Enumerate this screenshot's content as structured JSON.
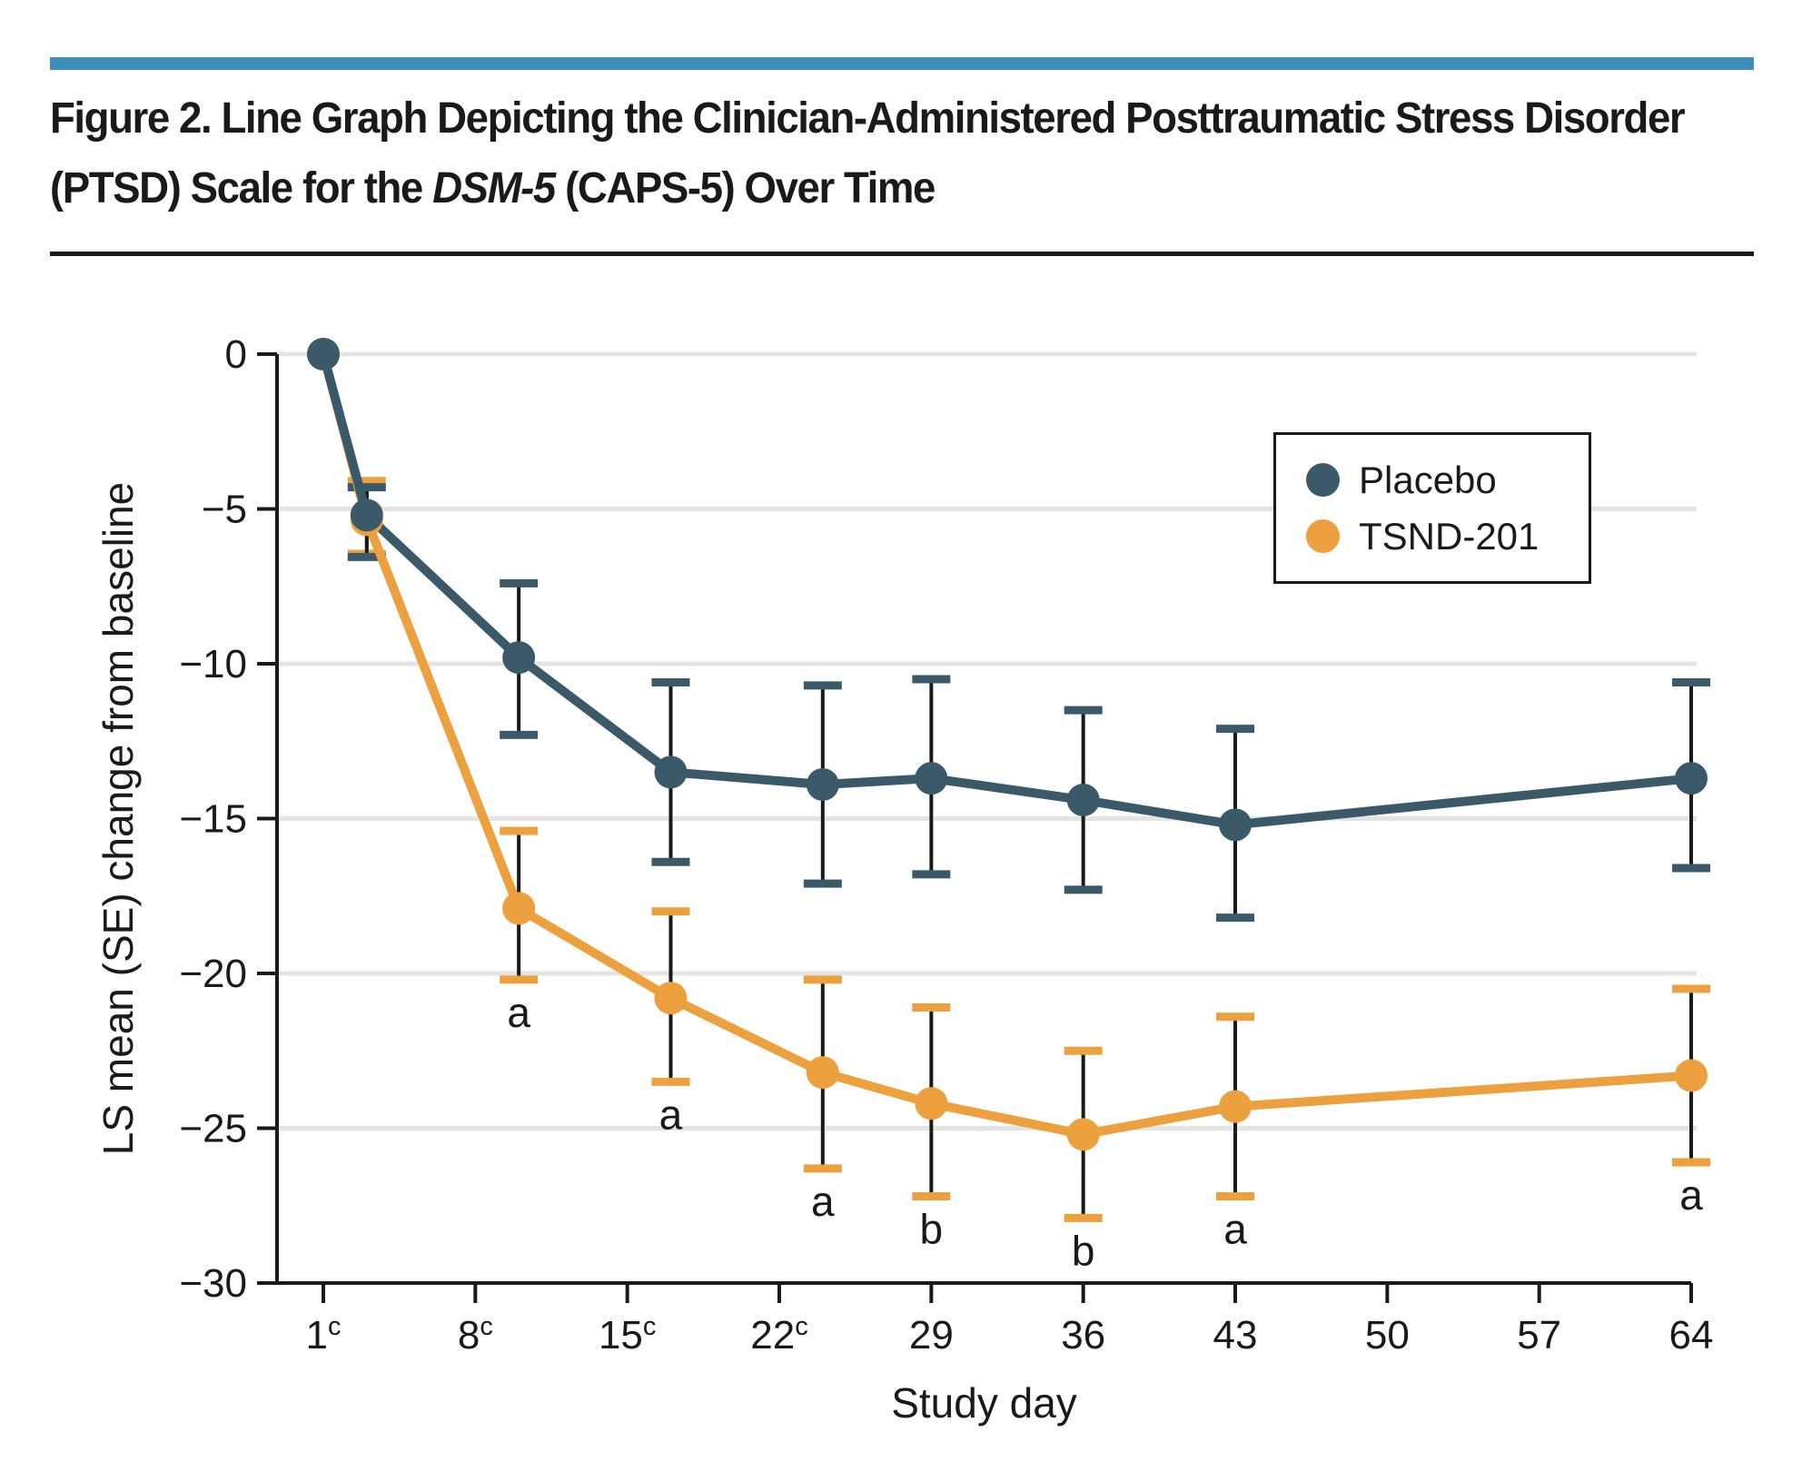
{
  "title": {
    "prefix": "Figure 2. Line Graph Depicting the Clinician-Administered Posttraumatic Stress Disorder (PTSD) Scale for the ",
    "italic": "DSM-5",
    "suffix": " (CAPS-5) Over Time"
  },
  "colors": {
    "header_bar": "#3D8EBB",
    "title_rule": "#1a1a1a",
    "placebo": "#3B5A69",
    "tsnd": "#EDA03E",
    "grid": "#E4E4E4",
    "axis": "#1a1a1a",
    "text": "#1a1a1a"
  },
  "legend": {
    "items": [
      {
        "label": "Placebo",
        "color_key": "placebo"
      },
      {
        "label": "TSND-201",
        "color_key": "tsnd"
      }
    ]
  },
  "chart_data": {
    "type": "line",
    "title": "Figure 2. Line Graph Depicting the Clinician-Administered Posttraumatic Stress Disorder (PTSD) Scale for the DSM-5 (CAPS-5) Over Time",
    "xlabel": "Study day",
    "ylabel": "LS mean (SE) change from baseline",
    "ylim": [
      -30,
      0
    ],
    "xlim": [
      1,
      64
    ],
    "grid": "horizontal",
    "legend_position": "upper right",
    "gridline_values": [
      0,
      -5,
      -10,
      -15,
      -20,
      -25
    ],
    "y_ticks": [
      {
        "value": 0,
        "label": "0"
      },
      {
        "value": -5,
        "label": "−5"
      },
      {
        "value": -10,
        "label": "−10"
      },
      {
        "value": -15,
        "label": "−15"
      },
      {
        "value": -20,
        "label": "−20"
      },
      {
        "value": -25,
        "label": "−25"
      },
      {
        "value": -30,
        "label": "−30"
      }
    ],
    "x_ticks": [
      {
        "value": 1,
        "label": "1",
        "sup": "c"
      },
      {
        "value": 8,
        "label": "8",
        "sup": "c"
      },
      {
        "value": 15,
        "label": "15",
        "sup": "c"
      },
      {
        "value": 22,
        "label": "22",
        "sup": "c"
      },
      {
        "value": 29,
        "label": "29",
        "sup": ""
      },
      {
        "value": 36,
        "label": "36",
        "sup": ""
      },
      {
        "value": 43,
        "label": "43",
        "sup": ""
      },
      {
        "value": 50,
        "label": "50",
        "sup": ""
      },
      {
        "value": 57,
        "label": "57",
        "sup": ""
      },
      {
        "value": 64,
        "label": "64",
        "sup": ""
      }
    ],
    "series": [
      {
        "name": "TSND-201",
        "color_key": "tsnd",
        "days": [
          1,
          3,
          10,
          17,
          24,
          29,
          36,
          43,
          64
        ],
        "values": [
          0,
          -5.35,
          -17.9,
          -20.8,
          -23.2,
          -24.2,
          -25.2,
          -24.3,
          -23.3
        ],
        "err_high": [
          null,
          -4.1,
          -15.4,
          -18.0,
          -20.2,
          -21.1,
          -22.5,
          -21.4,
          -20.5
        ],
        "err_low": [
          null,
          -6.45,
          -20.2,
          -23.5,
          -26.3,
          -27.2,
          -27.9,
          -27.2,
          -26.1
        ]
      },
      {
        "name": "Placebo",
        "color_key": "placebo",
        "days": [
          1,
          3,
          10,
          17,
          24,
          29,
          36,
          43,
          64
        ],
        "values": [
          0,
          -5.2,
          -9.8,
          -13.5,
          -13.9,
          -13.7,
          -14.4,
          -15.2,
          -13.7
        ],
        "err_high": [
          null,
          -4.3,
          -7.4,
          -10.6,
          -10.7,
          -10.5,
          -11.5,
          -12.1,
          -10.6
        ],
        "err_low": [
          null,
          -6.55,
          -12.3,
          -16.4,
          -17.1,
          -16.8,
          -17.3,
          -18.2,
          -16.6
        ]
      }
    ],
    "annotations": [
      {
        "day": 10,
        "text": "a"
      },
      {
        "day": 17,
        "text": "a"
      },
      {
        "day": 24,
        "text": "a"
      },
      {
        "day": 29,
        "text": "b"
      },
      {
        "day": 36,
        "text": "b"
      },
      {
        "day": 43,
        "text": "a"
      },
      {
        "day": 64,
        "text": "a"
      }
    ]
  }
}
